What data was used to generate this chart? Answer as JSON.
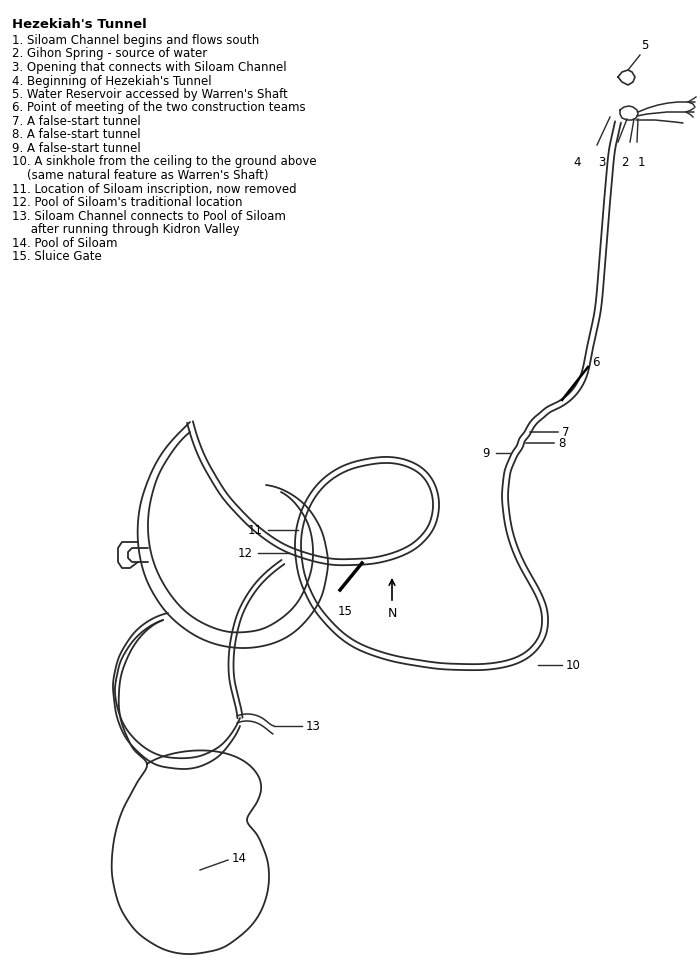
{
  "bg_color": "#ffffff",
  "line_color": "#2a2a2a",
  "lw_tunnel": 1.3,
  "lw_label": 1.0,
  "lw_thick": 2.2,
  "title": "Hezekiah's Tunnel",
  "legend": [
    "1. Siloam Channel begins and flows south",
    "2. Gihon Spring - source of water",
    "3. Opening that connects with Siloam Channel",
    "4. Beginning of Hezekiah's Tunnel",
    "5. Water Reservoir accessed by Warren's Shaft",
    "6. Point of meeting of the two construction teams",
    "7. A false-start tunnel",
    "8. A false-start tunnel",
    "9. A false-start tunnel",
    "10. A sinkhole from the ceiling to the ground above",
    "    (same natural feature as Warren's Shaft)",
    "11. Location of Siloam inscription, now removed",
    "12. Pool of Siloam's traditional location",
    "13. Siloam Channel connects to Pool of Siloam",
    "     after running through Kidron Valley",
    "14. Pool of Siloam",
    "15. Sluice Gate"
  ],
  "title_fontsize": 9.5,
  "legend_fontsize": 8.5,
  "label_fontsize": 8.5
}
